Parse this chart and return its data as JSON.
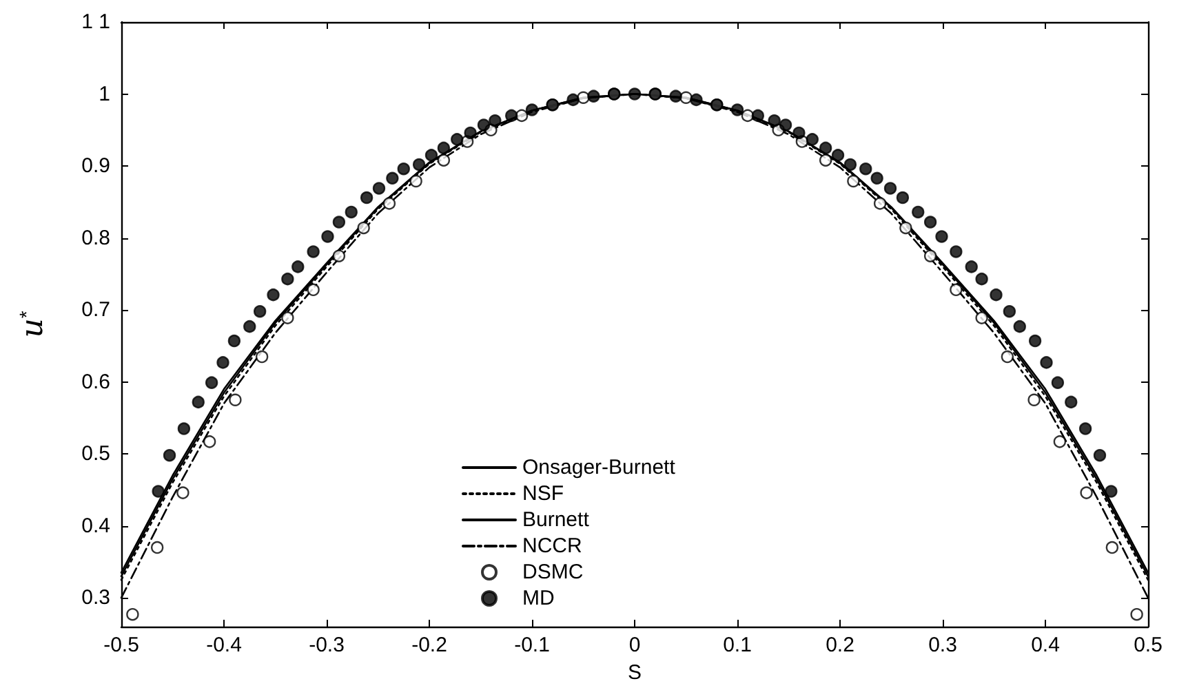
{
  "chart_data": {
    "type": "line",
    "xlabel": "S",
    "ylabel": "u$^{*}$",
    "xlim": [
      -0.5,
      0.5
    ],
    "xticks": [
      -0.5,
      -0.4,
      -0.3,
      -0.2,
      -0.1,
      0,
      0.1,
      0.2,
      0.3,
      0.4,
      0.5
    ],
    "ylim": [
      0.26,
      1.1
    ],
    "yticks": [
      0.3,
      0.4,
      0.5,
      0.6,
      0.7,
      0.8,
      0.9,
      1,
      {
        "value": 1.1,
        "label": "1 1"
      }
    ],
    "grid": false,
    "legend": "bottom",
    "series": [
      {
        "name": "Onsager-Burnett",
        "line_style": "solid",
        "color": "#000000",
        "x": [
          -0.5,
          -0.45,
          -0.4,
          -0.35,
          -0.3,
          -0.25,
          -0.2,
          -0.15,
          -0.1,
          -0.05,
          0,
          0.05,
          0.1,
          0.15,
          0.2,
          0.25,
          0.3,
          0.35,
          0.4,
          0.45,
          0.5
        ],
        "values": [
          0.335,
          0.47,
          0.59,
          0.685,
          0.765,
          0.843,
          0.905,
          0.948,
          0.977,
          0.995,
          1.0,
          0.995,
          0.977,
          0.948,
          0.905,
          0.843,
          0.765,
          0.685,
          0.59,
          0.47,
          0.335
        ]
      },
      {
        "name": "NSF",
        "line_style": "dotted",
        "color": "#000000",
        "x": [
          -0.5,
          -0.45,
          -0.4,
          -0.35,
          -0.3,
          -0.25,
          -0.2,
          -0.15,
          -0.1,
          -0.05,
          0,
          0.05,
          0.1,
          0.15,
          0.2,
          0.25,
          0.3,
          0.35,
          0.4,
          0.45,
          0.5
        ],
        "values": [
          0.325,
          0.46,
          0.58,
          0.678,
          0.76,
          0.84,
          0.903,
          0.947,
          0.976,
          0.994,
          1.0,
          0.994,
          0.976,
          0.947,
          0.903,
          0.84,
          0.76,
          0.678,
          0.58,
          0.46,
          0.325
        ]
      },
      {
        "name": "Burnett",
        "line_style": "solid",
        "color": "#000000",
        "x": [
          -0.5,
          -0.45,
          -0.4,
          -0.35,
          -0.3,
          -0.25,
          -0.2,
          -0.15,
          -0.1,
          -0.05,
          0,
          0.05,
          0.1,
          0.15,
          0.2,
          0.25,
          0.3,
          0.35,
          0.4,
          0.45,
          0.5
        ],
        "values": [
          0.33,
          0.465,
          0.585,
          0.682,
          0.763,
          0.842,
          0.904,
          0.948,
          0.977,
          0.995,
          1.0,
          0.995,
          0.977,
          0.948,
          0.904,
          0.842,
          0.763,
          0.682,
          0.585,
          0.465,
          0.33
        ]
      },
      {
        "name": "NCCR",
        "line_style": "dashdot",
        "color": "#000000",
        "x": [
          -0.5,
          -0.45,
          -0.4,
          -0.35,
          -0.3,
          -0.25,
          -0.2,
          -0.15,
          -0.1,
          -0.05,
          0,
          0.05,
          0.1,
          0.15,
          0.2,
          0.25,
          0.3,
          0.35,
          0.4,
          0.45,
          0.5
        ],
        "values": [
          0.3,
          0.44,
          0.57,
          0.668,
          0.752,
          0.834,
          0.898,
          0.944,
          0.975,
          0.994,
          1.0,
          0.994,
          0.975,
          0.944,
          0.898,
          0.834,
          0.752,
          0.668,
          0.57,
          0.44,
          0.3
        ]
      },
      {
        "name": "DSMC",
        "type": "scatter",
        "marker": "circle",
        "color": "#ffffff",
        "x": [
          -0.489,
          -0.465,
          -0.44,
          -0.414,
          -0.389,
          -0.363,
          -0.338,
          -0.313,
          -0.288,
          -0.264,
          -0.239,
          -0.213,
          -0.186,
          -0.163,
          -0.14,
          -0.11,
          -0.08,
          -0.05,
          -0.02,
          0.02,
          0.05,
          0.08,
          0.11,
          0.14,
          0.163,
          0.186,
          0.213,
          0.239,
          0.264,
          0.288,
          0.313,
          0.338,
          0.363,
          0.389,
          0.414,
          0.44,
          0.465,
          0.489
        ],
        "values": [
          0.277,
          0.37,
          0.446,
          0.517,
          0.575,
          0.635,
          0.689,
          0.728,
          0.775,
          0.814,
          0.848,
          0.879,
          0.908,
          0.934,
          0.95,
          0.97,
          0.985,
          0.995,
          1.0,
          1.0,
          0.995,
          0.985,
          0.97,
          0.95,
          0.934,
          0.908,
          0.879,
          0.848,
          0.814,
          0.775,
          0.728,
          0.689,
          0.635,
          0.575,
          0.517,
          0.446,
          0.37,
          0.277
        ]
      },
      {
        "name": "MD",
        "type": "scatter",
        "marker": "circle",
        "color": "#000000",
        "x": [
          -0.464,
          -0.453,
          -0.439,
          -0.425,
          -0.412,
          -0.401,
          -0.39,
          -0.375,
          -0.365,
          -0.352,
          -0.338,
          -0.328,
          -0.313,
          -0.299,
          -0.288,
          -0.276,
          -0.261,
          -0.249,
          -0.236,
          -0.225,
          -0.21,
          -0.198,
          -0.186,
          -0.173,
          -0.16,
          -0.147,
          -0.136,
          -0.12,
          -0.1,
          -0.08,
          -0.06,
          -0.04,
          -0.02,
          0,
          0.02,
          0.04,
          0.06,
          0.08,
          0.1,
          0.12,
          0.136,
          0.147,
          0.16,
          0.173,
          0.186,
          0.198,
          0.21,
          0.225,
          0.236,
          0.249,
          0.261,
          0.276,
          0.288,
          0.299,
          0.313,
          0.328,
          0.338,
          0.352,
          0.365,
          0.375,
          0.39,
          0.401,
          0.412,
          0.425,
          0.439,
          0.453,
          0.464
        ],
        "values": [
          0.448,
          0.498,
          0.535,
          0.572,
          0.599,
          0.627,
          0.657,
          0.677,
          0.698,
          0.721,
          0.743,
          0.76,
          0.781,
          0.802,
          0.822,
          0.836,
          0.856,
          0.869,
          0.883,
          0.896,
          0.902,
          0.915,
          0.925,
          0.937,
          0.946,
          0.957,
          0.963,
          0.97,
          0.978,
          0.985,
          0.992,
          0.997,
          1.0,
          1.0,
          1.0,
          0.997,
          0.992,
          0.985,
          0.978,
          0.97,
          0.963,
          0.957,
          0.946,
          0.937,
          0.925,
          0.915,
          0.902,
          0.896,
          0.883,
          0.869,
          0.856,
          0.836,
          0.822,
          0.802,
          0.781,
          0.76,
          0.743,
          0.721,
          0.698,
          0.677,
          0.657,
          0.627,
          0.599,
          0.572,
          0.535,
          0.498,
          0.448
        ]
      }
    ]
  }
}
